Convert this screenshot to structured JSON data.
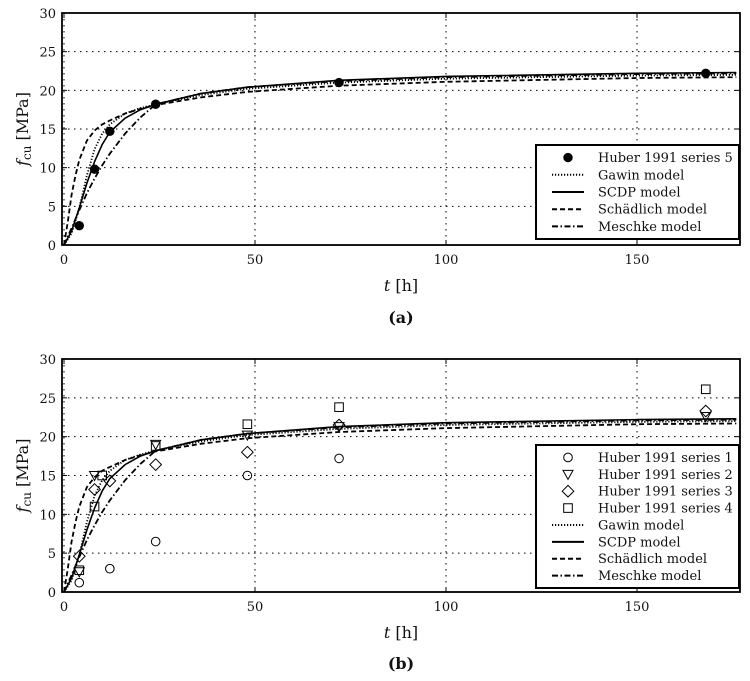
{
  "chart_data": [
    {
      "panel": "a",
      "caption": "(a)",
      "type": "line",
      "title": "",
      "xlabel": "t [h]",
      "ylabel": "f_cu [MPa]",
      "xlim": [
        0,
        176
      ],
      "ylim": [
        0,
        30
      ],
      "xticks": [
        0,
        50,
        100,
        150
      ],
      "yticks": [
        0,
        5,
        10,
        15,
        20,
        25,
        30
      ],
      "grid": true,
      "legend_position": "lower right",
      "series": [
        {
          "name": "Huber 1991 series 5",
          "kind": "scatter",
          "marker": "filled-circle",
          "x": [
            4,
            8,
            12,
            24,
            72,
            168
          ],
          "y": [
            2.5,
            9.8,
            14.7,
            18.2,
            21.0,
            22.2
          ]
        },
        {
          "name": "Gawin model",
          "kind": "line",
          "style": "dotted",
          "x": [
            0,
            2,
            4,
            6,
            8,
            10,
            12,
            16,
            20,
            24,
            36,
            48,
            72,
            100,
            150,
            176
          ],
          "y": [
            0,
            1.5,
            4.8,
            9.0,
            12.4,
            14.4,
            15.6,
            17.0,
            17.7,
            18.2,
            19.4,
            20.2,
            21.0,
            21.5,
            21.9,
            22.0
          ]
        },
        {
          "name": "SCDP model",
          "kind": "line",
          "style": "solid",
          "x": [
            0,
            2,
            4,
            6,
            8,
            10,
            12,
            16,
            20,
            24,
            36,
            48,
            72,
            100,
            150,
            176
          ],
          "y": [
            0,
            1.8,
            4.8,
            8.0,
            10.8,
            13.0,
            14.6,
            16.4,
            17.5,
            18.2,
            19.6,
            20.4,
            21.3,
            21.8,
            22.2,
            22.3
          ]
        },
        {
          "name": "Schädlich model",
          "kind": "line",
          "style": "dashed",
          "x": [
            0,
            1,
            2,
            3,
            4,
            6,
            8,
            10,
            12,
            16,
            20,
            24,
            36,
            48,
            72,
            100,
            150,
            176
          ],
          "y": [
            0,
            3.0,
            6.5,
            9.0,
            11.0,
            13.5,
            14.8,
            15.6,
            16.1,
            17.0,
            17.6,
            18.1,
            19.1,
            19.8,
            20.6,
            21.1,
            21.6,
            21.7
          ]
        },
        {
          "name": "Meschke model",
          "kind": "line",
          "style": "dashdot",
          "x": [
            0,
            2,
            4,
            6,
            8,
            10,
            12,
            16,
            20,
            24,
            36,
            48,
            72,
            100,
            150,
            176
          ],
          "y": [
            0,
            2.2,
            4.5,
            6.7,
            8.6,
            10.3,
            11.8,
            14.4,
            16.5,
            18.2,
            19.6,
            20.4,
            21.2,
            21.7,
            22.1,
            22.2
          ]
        }
      ]
    },
    {
      "panel": "b",
      "caption": "(b)",
      "type": "line",
      "title": "",
      "xlabel": "t [h]",
      "ylabel": "f_cu [MPa]",
      "xlim": [
        0,
        176
      ],
      "ylim": [
        0,
        30
      ],
      "xticks": [
        0,
        50,
        100,
        150
      ],
      "yticks": [
        0,
        5,
        10,
        15,
        20,
        25,
        30
      ],
      "grid": true,
      "legend_position": "lower right",
      "series": [
        {
          "name": "Huber 1991 series 1",
          "kind": "scatter",
          "marker": "open-circle",
          "x": [
            4,
            12,
            24,
            48,
            72
          ],
          "y": [
            1.2,
            3.0,
            6.5,
            15.0,
            17.2
          ]
        },
        {
          "name": "Huber 1991 series 2",
          "kind": "scatter",
          "marker": "open-triangle-down",
          "x": [
            4,
            8,
            24,
            48,
            72,
            168
          ],
          "y": [
            2.6,
            15.0,
            19.0,
            20.2,
            21.3,
            22.6
          ]
        },
        {
          "name": "Huber 1991 series 3",
          "kind": "scatter",
          "marker": "open-diamond",
          "x": [
            4,
            8,
            12,
            24,
            48,
            72,
            168
          ],
          "y": [
            4.6,
            13.2,
            14.3,
            16.4,
            18.0,
            21.5,
            23.3
          ]
        },
        {
          "name": "Huber 1991 series 4",
          "kind": "scatter",
          "marker": "open-square",
          "x": [
            4,
            8,
            10,
            24,
            48,
            72,
            168
          ],
          "y": [
            2.8,
            11.0,
            15.0,
            18.8,
            21.6,
            23.8,
            26.1
          ]
        },
        {
          "name": "Gawin model",
          "kind": "line",
          "style": "dotted",
          "x": [
            0,
            2,
            4,
            6,
            8,
            10,
            12,
            16,
            20,
            24,
            36,
            48,
            72,
            100,
            150,
            176
          ],
          "y": [
            0,
            1.5,
            4.8,
            9.0,
            12.4,
            14.4,
            15.6,
            17.0,
            17.7,
            18.2,
            19.4,
            20.2,
            21.0,
            21.5,
            21.9,
            22.0
          ]
        },
        {
          "name": "SCDP model",
          "kind": "line",
          "style": "solid",
          "x": [
            0,
            2,
            4,
            6,
            8,
            10,
            12,
            16,
            20,
            24,
            36,
            48,
            72,
            100,
            150,
            176
          ],
          "y": [
            0,
            1.8,
            4.8,
            8.0,
            10.8,
            13.0,
            14.6,
            16.4,
            17.5,
            18.2,
            19.6,
            20.4,
            21.3,
            21.8,
            22.2,
            22.3
          ]
        },
        {
          "name": "Schädlich model",
          "kind": "line",
          "style": "dashed",
          "x": [
            0,
            1,
            2,
            3,
            4,
            6,
            8,
            10,
            12,
            16,
            20,
            24,
            36,
            48,
            72,
            100,
            150,
            176
          ],
          "y": [
            0,
            3.0,
            6.5,
            9.0,
            11.0,
            13.5,
            14.8,
            15.6,
            16.1,
            17.0,
            17.6,
            18.1,
            19.1,
            19.8,
            20.6,
            21.1,
            21.6,
            21.7
          ]
        },
        {
          "name": "Meschke model",
          "kind": "line",
          "style": "dashdot",
          "x": [
            0,
            2,
            4,
            6,
            8,
            10,
            12,
            16,
            20,
            24,
            36,
            48,
            72,
            100,
            150,
            176
          ],
          "y": [
            0,
            2.2,
            4.5,
            6.7,
            8.6,
            10.3,
            11.8,
            14.4,
            16.5,
            18.2,
            19.6,
            20.4,
            21.2,
            21.7,
            22.1,
            22.2
          ]
        }
      ]
    }
  ],
  "labels": {
    "ylabel_italic": "f",
    "ylabel_sub": "cu",
    "ylabel_unit": " [MPa]",
    "xlabel_italic": "t",
    "xlabel_unit": " [h]",
    "caption_a": "(a)",
    "caption_b": "(b)"
  }
}
